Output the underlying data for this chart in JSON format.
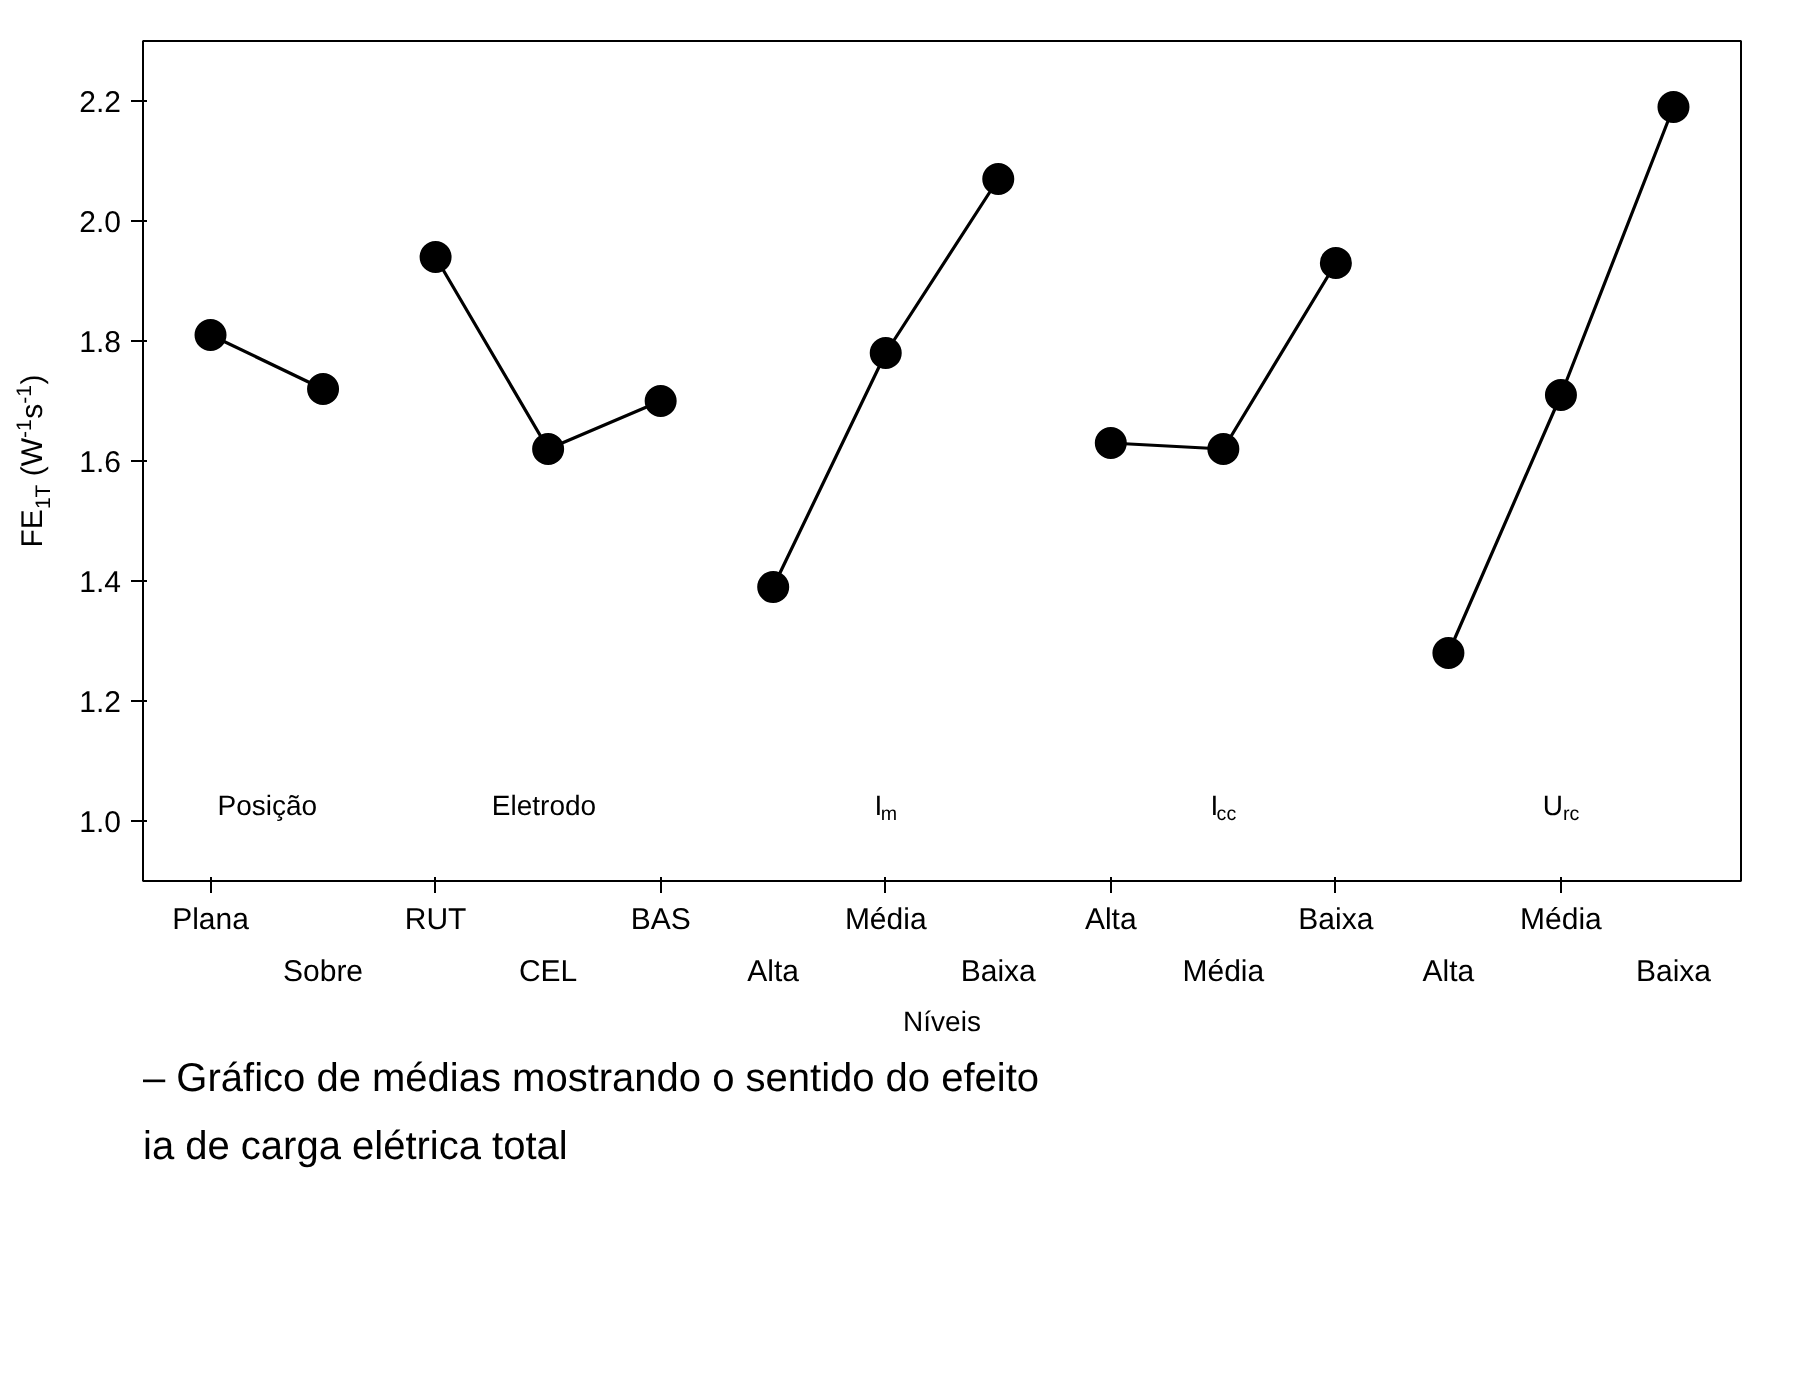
{
  "chart_data": {
    "type": "line",
    "categories": [
      "Plana",
      "Sobre",
      "RUT",
      "CEL",
      "BAS",
      "Alta",
      "Média",
      "Baixa",
      "Alta",
      "Média",
      "Baixa",
      "Alta",
      "Média",
      "Baixa"
    ],
    "series": [
      {
        "color": "#000000",
        "values": [
          1.81,
          1.72,
          null,
          null,
          null,
          null,
          null,
          null,
          null,
          null,
          null,
          null,
          null,
          null
        ]
      },
      {
        "color": "#000000",
        "values": [
          null,
          null,
          1.94,
          1.62,
          1.7,
          null,
          null,
          null,
          null,
          null,
          null,
          null,
          null,
          null
        ]
      },
      {
        "color": "#000000",
        "values": [
          null,
          null,
          null,
          null,
          null,
          1.39,
          1.78,
          2.07,
          null,
          null,
          null,
          null,
          null,
          null
        ]
      },
      {
        "color": "#000000",
        "values": [
          null,
          null,
          null,
          null,
          null,
          null,
          null,
          null,
          1.63,
          1.62,
          1.93,
          null,
          null,
          null
        ]
      },
      {
        "color": "#000000",
        "values": [
          null,
          null,
          null,
          null,
          null,
          null,
          null,
          null,
          null,
          null,
          null,
          1.28,
          1.71,
          2.19
        ]
      }
    ],
    "xlabel": "Níveis",
    "ylabel": "FE$_{1T}$ (W$^{-1}$s$^{-1}$)",
    "ylim": [
      0.9,
      2.3
    ],
    "yticks": [
      {
        "value": 1.0,
        "label": "1.0"
      },
      1.2,
      1.4,
      1.6,
      1.8,
      {
        "value": 2.0,
        "label": "2.0"
      },
      2.2
    ],
    "marker": "circle",
    "line_style": "solid",
    "annotations": [
      "Posição",
      "Eletrodo",
      "I$_{m}$",
      "I$_{cc}$",
      "U$_{rc}$",
      "– Gráfico de médias mostrando o sentido do efeito",
      "ia de carga elétrica total"
    ]
  }
}
